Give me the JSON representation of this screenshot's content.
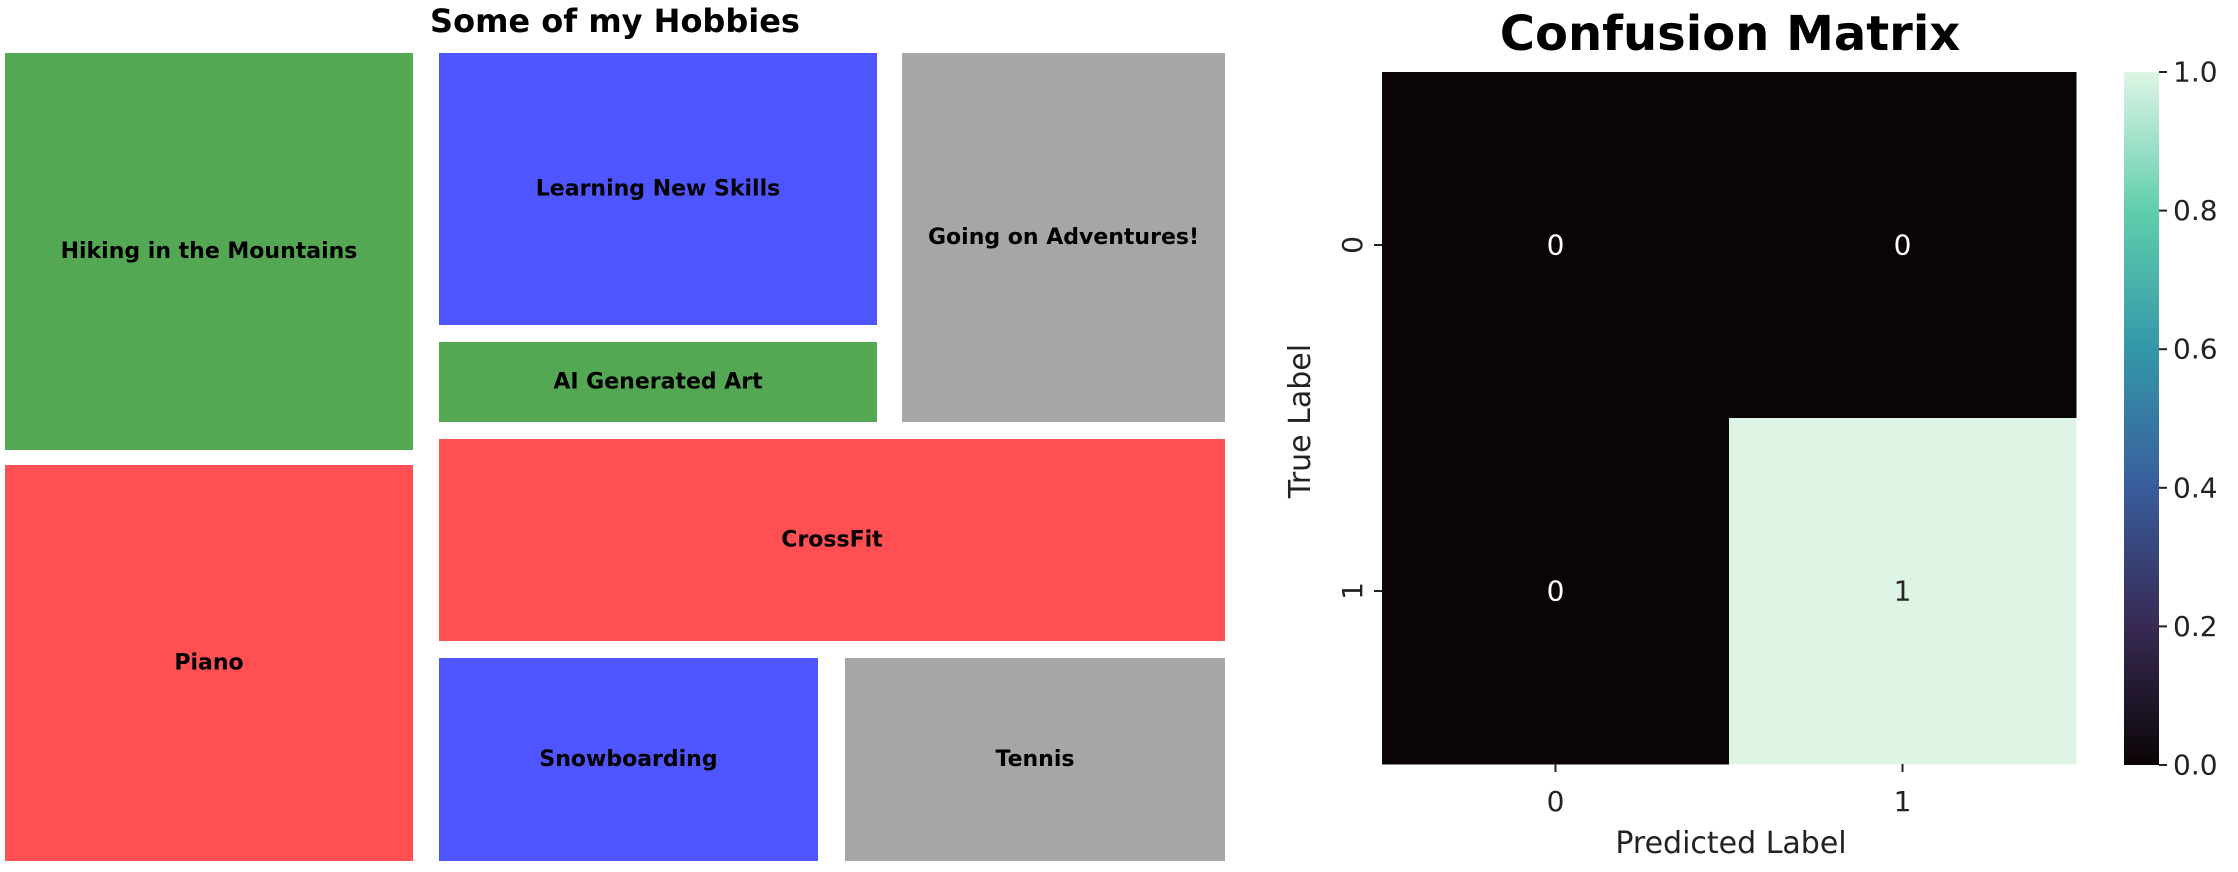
{
  "chart_data": [
    {
      "type": "treemap",
      "title": "Some of my Hobbies",
      "tiles": [
        {
          "label": "Hiking in the Mountains",
          "color": "#55a853"
        },
        {
          "label": "Learning New Skills",
          "color": "#4f55ff"
        },
        {
          "label": "Going on Adventures!",
          "color": "#a6a6a6"
        },
        {
          "label": "AI Generated Art",
          "color": "#55a853"
        },
        {
          "label": "Piano",
          "color": "#ff4f52"
        },
        {
          "label": "CrossFit",
          "color": "#ff4f52"
        },
        {
          "label": "Snowboarding",
          "color": "#4f55ff"
        },
        {
          "label": "Tennis",
          "color": "#a6a6a6"
        }
      ]
    },
    {
      "type": "heatmap",
      "title": "Confusion Matrix",
      "xlabel": "Predicted Label",
      "ylabel": "True Label",
      "x_ticks": [
        "0",
        "1"
      ],
      "y_ticks": [
        "0",
        "1"
      ],
      "matrix": [
        [
          0,
          0
        ],
        [
          0,
          1
        ]
      ],
      "colorbar": {
        "range": [
          0.0,
          1.0
        ],
        "ticks": [
          "0.0",
          "0.2",
          "0.4",
          "0.6",
          "0.8",
          "1.0"
        ],
        "colormap": "mako"
      }
    }
  ]
}
